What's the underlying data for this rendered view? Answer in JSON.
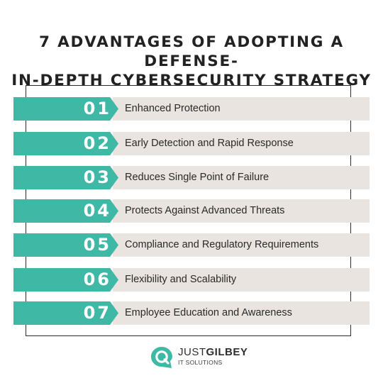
{
  "title": {
    "line1": "7 ADVANTAGES OF ADOPTING A DEFENSE-",
    "line2": "IN-DEPTH CYBERSECURITY STRATEGY"
  },
  "items": [
    {
      "number": "01",
      "label": "Enhanced Protection"
    },
    {
      "number": "02",
      "label": "Early Detection and Rapid Response"
    },
    {
      "number": "03",
      "label": "Reduces Single Point of Failure"
    },
    {
      "number": "04",
      "label": "Protects Against Advanced Threats"
    },
    {
      "number": "05",
      "label": "Compliance and Regulatory Requirements"
    },
    {
      "number": "06",
      "label": "Flexibility and Scalability"
    },
    {
      "number": "07",
      "label": "Employee Education and Awareness"
    }
  ],
  "logo": {
    "brand_just": "JUST",
    "brand_gilbey": "GILBEY",
    "tagline": "IT SOLUTIONS",
    "icon": "speech-bubble-logo-icon"
  },
  "colors": {
    "accent": "#3fb8a6",
    "bar": "#e9e4df",
    "text": "#2a2a2a"
  }
}
